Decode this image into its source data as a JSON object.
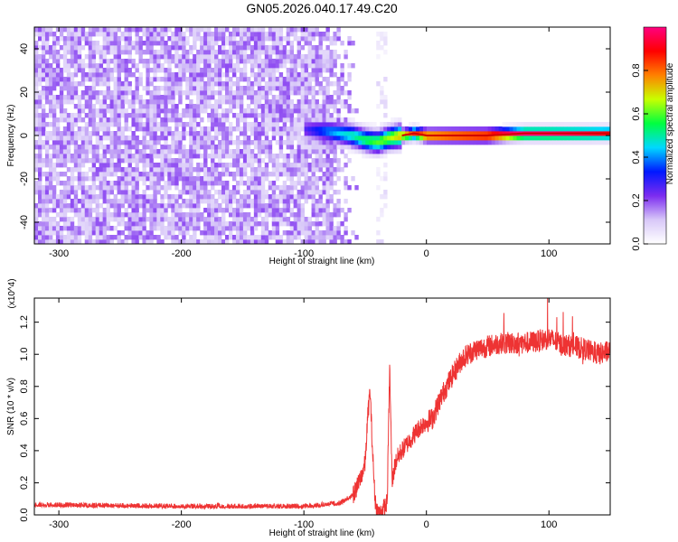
{
  "title": "GN05.2026.040.17.49.C20",
  "chart_data": [
    {
      "type": "heatmap",
      "xlabel": "Height of straight line (km)",
      "ylabel": "Frequency (Hz)",
      "xlim": [
        -320,
        150
      ],
      "ylim": [
        -50,
        50
      ],
      "x_ticks": [
        "-300",
        "-200",
        "-100",
        "0",
        "100"
      ],
      "y_ticks": [
        "-40",
        "-20",
        "0",
        "20",
        "40"
      ],
      "colorbar": {
        "label": "Normalized spectral amplitude",
        "range": [
          0,
          1
        ],
        "ticks": [
          "0.0",
          "0.2",
          "0.4",
          "0.6",
          "0.8"
        ],
        "colors": [
          "#ffffff",
          "#d8c8f8",
          "#7c2cf0",
          "#0018ff",
          "#00d8ff",
          "#00ff40",
          "#c8ff00",
          "#ff8000",
          "#ff0000",
          "#ff0080"
        ]
      },
      "noise_region": {
        "x": [
          -320,
          -55
        ],
        "amplitude": 0.2
      },
      "quiet_gap": {
        "x": [
          -55,
          -40
        ]
      },
      "noise_band": {
        "x": [
          -40,
          -33
        ]
      },
      "signal_track": {
        "x": [
          -100,
          -80,
          -60,
          -50,
          -40,
          -30,
          -20,
          -10,
          0,
          20,
          50,
          80,
          100,
          130,
          150
        ],
        "freq_hz": [
          3,
          2,
          0,
          -2,
          -3,
          -1,
          0,
          1,
          0,
          0,
          0,
          1,
          1,
          1,
          1
        ],
        "amplitude": [
          0.25,
          0.4,
          0.5,
          0.55,
          0.6,
          0.65,
          0.75,
          0.85,
          0.9,
          0.95,
          1,
          1,
          1,
          0.95,
          0.9
        ]
      }
    },
    {
      "type": "line",
      "xlabel": "Height of straight line (km)",
      "ylabel": "SNR (10 * v/v)",
      "multiplier": "(x10^4)",
      "xlim": [
        -320,
        150
      ],
      "ylim": [
        0,
        1.35
      ],
      "x_ticks": [
        "-300",
        "-200",
        "-100",
        "0",
        "100"
      ],
      "y_ticks": [
        "0.0",
        "0.2",
        "0.4",
        "0.6",
        "0.8",
        "1.0",
        "1.2"
      ],
      "color": "#ee3333",
      "series": [
        {
          "x": [
            -320,
            -200,
            -100,
            -70,
            -60,
            -55,
            -50,
            -48,
            -46,
            -44,
            -42,
            -40,
            -38,
            -36,
            -34,
            -32,
            -30,
            -28,
            -26,
            -24,
            -22,
            -20,
            -15,
            -10,
            -5,
            0,
            5,
            10,
            15,
            20,
            25,
            30,
            40,
            50,
            60,
            70,
            80,
            90,
            100,
            110,
            120,
            130,
            140,
            150
          ],
          "y": [
            0.06,
            0.05,
            0.05,
            0.07,
            0.12,
            0.2,
            0.32,
            0.6,
            0.78,
            0.4,
            0.1,
            0.02,
            0.01,
            0.03,
            0.05,
            0.08,
            0.92,
            0.2,
            0.3,
            0.35,
            0.38,
            0.4,
            0.45,
            0.5,
            0.55,
            0.58,
            0.6,
            0.7,
            0.78,
            0.85,
            0.92,
            0.98,
            1.03,
            1.05,
            1.07,
            1.07,
            1.07,
            1.08,
            1.1,
            1.06,
            1.05,
            1.03,
            1.0,
            1.02
          ]
        }
      ]
    }
  ]
}
